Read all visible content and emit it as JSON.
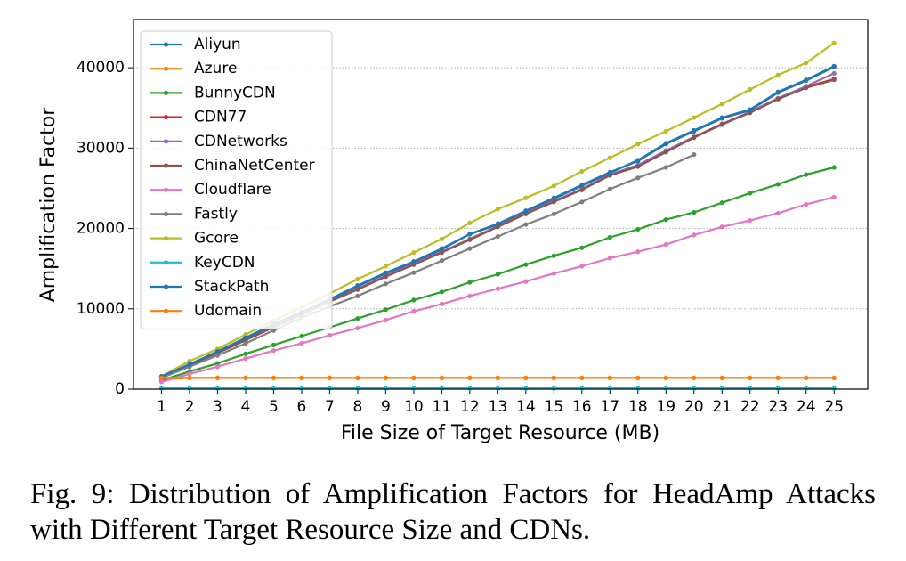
{
  "chart_data": {
    "type": "line",
    "xlabel": "File Size of Target Resource (MB)",
    "ylabel": "Amplification Factor",
    "caption": "Fig. 9: Distribution of Amplification Factors for HeadAmp Attacks with Different Target Resource Size and CDNs.",
    "x": [
      1,
      2,
      3,
      4,
      5,
      6,
      7,
      8,
      9,
      10,
      11,
      12,
      13,
      14,
      15,
      16,
      17,
      18,
      19,
      20,
      21,
      22,
      23,
      24,
      25
    ],
    "xlim": [
      0,
      26.2
    ],
    "xticks": [
      1,
      2,
      3,
      4,
      5,
      6,
      7,
      8,
      9,
      10,
      11,
      12,
      13,
      14,
      15,
      16,
      17,
      18,
      19,
      20,
      21,
      22,
      23,
      24,
      25
    ],
    "ylim": [
      0,
      46000
    ],
    "yticks": [
      0,
      10000,
      20000,
      30000,
      40000
    ],
    "grid": true,
    "legend": "upper left",
    "series": [
      {
        "name": "Aliyun",
        "color": "#1f77b4",
        "values": [
          1600,
          3100,
          4600,
          6300,
          8000,
          9500,
          11100,
          12800,
          14400,
          15800,
          17400,
          19300,
          20500,
          22100,
          23700,
          25300,
          26900,
          28500,
          30600,
          32200,
          33800,
          34800,
          37000,
          38500,
          40200
        ]
      },
      {
        "name": "Azure",
        "color": "#ff7f0e",
        "values": [
          1200,
          1400,
          1400,
          1400,
          1400,
          1400,
          1400,
          1400,
          1400,
          1400,
          1400,
          1400,
          1400,
          1400,
          1400,
          1400,
          1400,
          1400,
          1400,
          1400,
          1400,
          1400,
          1400,
          1400,
          1400
        ]
      },
      {
        "name": "BunnyCDN",
        "color": "#2ca02c",
        "values": [
          1100,
          2200,
          3200,
          4400,
          5500,
          6600,
          7700,
          8800,
          9900,
          11100,
          12100,
          13300,
          14300,
          15500,
          16600,
          17600,
          18900,
          19900,
          21100,
          22000,
          23200,
          24400,
          25500,
          26700,
          27600
        ]
      },
      {
        "name": "CDN77",
        "color": "#d62728",
        "values": [
          1500,
          3000,
          4500,
          6100,
          7700,
          9300,
          10900,
          12500,
          14100,
          15600,
          17100,
          18600,
          20300,
          21900,
          23400,
          24900,
          26700,
          27800,
          29600,
          31400,
          33000,
          34500,
          36200,
          37600,
          38600
        ]
      },
      {
        "name": "CDNetworks",
        "color": "#9467bd",
        "values": [
          1500,
          3000,
          4500,
          6100,
          7700,
          9300,
          10900,
          12500,
          14100,
          15600,
          17100,
          18700,
          20300,
          21900,
          23400,
          24900,
          26700,
          27900,
          29700,
          31400,
          32900,
          34500,
          36200,
          37700,
          39300
        ]
      },
      {
        "name": "ChinaNetCenter",
        "color": "#8c564b",
        "values": [
          1500,
          3000,
          4500,
          6100,
          7700,
          9300,
          10900,
          12400,
          14000,
          15500,
          17000,
          18600,
          20200,
          21800,
          23300,
          24800,
          26600,
          27700,
          29500,
          31300,
          33000,
          34400,
          36100,
          37500,
          38500
        ]
      },
      {
        "name": "Cloudflare",
        "color": "#e377c2",
        "values": [
          900,
          1900,
          2800,
          3800,
          4800,
          5700,
          6700,
          7600,
          8600,
          9700,
          10600,
          11600,
          12500,
          13400,
          14400,
          15300,
          16300,
          17100,
          18000,
          19200,
          20200,
          21000,
          21900,
          23000,
          23900
        ]
      },
      {
        "name": "Fastly",
        "color": "#7f7f7f",
        "values": [
          1400,
          2800,
          4200,
          5700,
          7300,
          8900,
          10300,
          11600,
          13100,
          14500,
          16000,
          17500,
          19000,
          20500,
          21800,
          23300,
          24900,
          26300,
          27600,
          29200,
          null,
          null,
          null,
          null,
          null
        ]
      },
      {
        "name": "Gcore",
        "color": "#bcbd22",
        "values": [
          1600,
          3500,
          5000,
          6800,
          8500,
          10200,
          11900,
          13700,
          15300,
          17000,
          18700,
          20700,
          22400,
          23800,
          25300,
          27100,
          28800,
          30500,
          32100,
          33800,
          35500,
          37300,
          39100,
          40600,
          43100
        ]
      },
      {
        "name": "KeyCDN",
        "color": "#17becf",
        "values": [
          100,
          100,
          100,
          100,
          100,
          100,
          100,
          100,
          100,
          100,
          100,
          100,
          100,
          100,
          100,
          100,
          100,
          100,
          100,
          100,
          100,
          100,
          100,
          100,
          100
        ]
      },
      {
        "name": "StackPath",
        "color": "#1f77b4",
        "values": [
          1600,
          3100,
          4700,
          6400,
          8100,
          9600,
          11200,
          12900,
          14500,
          15900,
          17500,
          19300,
          20600,
          22200,
          23800,
          25400,
          27000,
          28400,
          30500,
          32100,
          33700,
          34700,
          36900,
          38400,
          40100
        ]
      },
      {
        "name": "Udomain",
        "color": "#ff7f0e",
        "values": [
          1400,
          1400,
          1400,
          1400,
          1400,
          1400,
          1400,
          1400,
          1400,
          1400,
          1400,
          1400,
          1400,
          1400,
          1400,
          1400,
          1400,
          1400,
          1400,
          1400,
          1400,
          1400,
          1400,
          1400,
          1400
        ]
      }
    ]
  }
}
